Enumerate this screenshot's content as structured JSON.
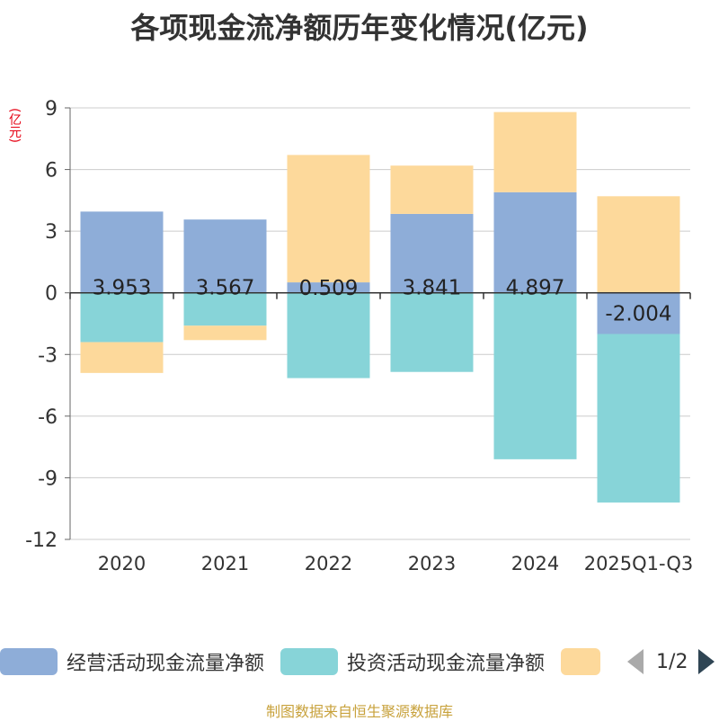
{
  "chart_data": {
    "type": "bar",
    "stacked": true,
    "title": "各项现金流净额历年变化情况(亿元)",
    "ylabel": "(亿元)",
    "ylim": [
      -12,
      9
    ],
    "yticks": [
      9,
      6,
      3,
      0,
      -3,
      -6,
      -9,
      -12
    ],
    "categories": [
      "2020",
      "2021",
      "2022",
      "2023",
      "2024",
      "2025Q1-Q3"
    ],
    "series": [
      {
        "name": "经营活动现金流量净额",
        "color": "#8eadd8",
        "values": [
          3.953,
          3.567,
          0.509,
          3.841,
          4.897,
          -2.004
        ],
        "labels": [
          "3.953",
          "3.567",
          "0.509",
          "3.841",
          "4.897",
          "-2.004"
        ]
      },
      {
        "name": "投资活动现金流量净额",
        "color": "#87d4d8",
        "values": [
          -2.4,
          -1.6,
          -4.15,
          -3.85,
          -8.1,
          -8.2
        ]
      },
      {
        "name": "",
        "color": "#fdd99b",
        "values": [
          -1.5,
          -0.7,
          6.2,
          2.35,
          3.9,
          4.7
        ]
      }
    ],
    "legend_position": "bottom",
    "grid": true
  },
  "legend": {
    "item1": "经营活动现金流量净额",
    "item2": "投资活动现金流量净额",
    "page": "1/2"
  },
  "source": "制图数据来自恒生聚源数据库"
}
